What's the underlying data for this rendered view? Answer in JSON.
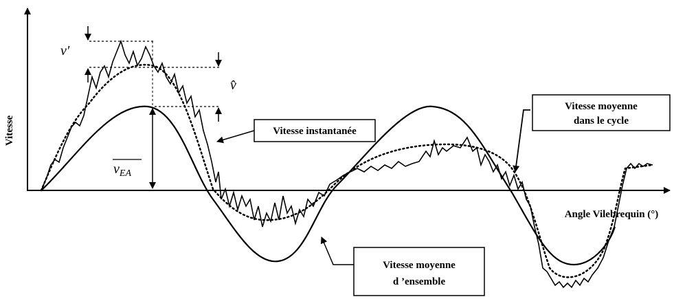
{
  "axes": {
    "y_label": "Vitesse",
    "x_label": "Angle Vilebrequin (°)"
  },
  "symbols": {
    "fluctuation": "v′",
    "amplitude": "v̂",
    "ensemble_mean": "v",
    "ensemble_mean_subscript": "EA"
  },
  "callouts": [
    {
      "lines": [
        "Vitesse instantanée"
      ]
    },
    {
      "lines": [
        "Vitesse moyenne",
        "dans  le cycle"
      ]
    },
    {
      "lines": [
        "Vitesse moyenne",
        "d ’ensemble"
      ]
    }
  ]
}
